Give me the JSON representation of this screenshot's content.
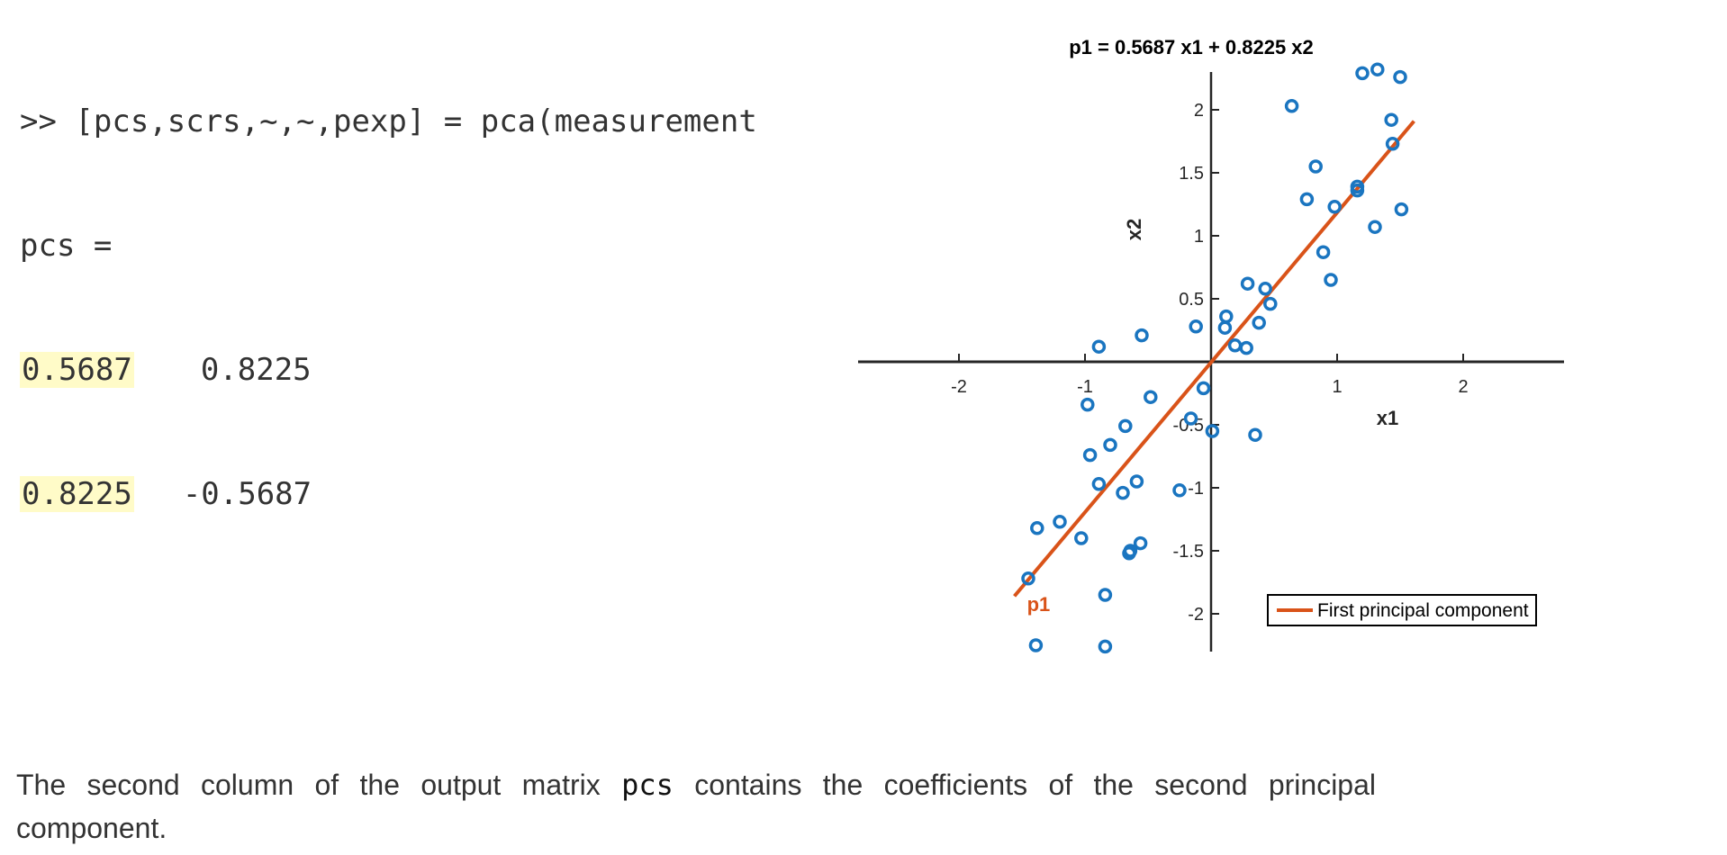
{
  "code": {
    "command": ">> [pcs,scrs,~,~,pexp] = pca(measurement",
    "var_label": "pcs =",
    "matrix": [
      [
        "0.5687",
        "0.8225"
      ],
      [
        "0.8225",
        "-0.5687"
      ]
    ]
  },
  "chart_data": {
    "type": "scatter",
    "title": "p1 = 0.5687 x1 + 0.8225 x2",
    "xlabel": "x1",
    "ylabel": "x2",
    "xlim": [
      -2.8,
      2.8
    ],
    "ylim": [
      -2.3,
      2.3
    ],
    "x_ticks": [
      -2,
      -1,
      1,
      2
    ],
    "y_ticks": [
      -2,
      -1.5,
      -1,
      -0.5,
      0.5,
      1,
      1.5,
      2
    ],
    "tick_labels_x": [
      "-2",
      "-1",
      "1",
      "2"
    ],
    "tick_labels_y": [
      "-2",
      "-1.5",
      "-1",
      "-0.5",
      "0.5",
      "1",
      "1.5",
      "2"
    ],
    "grid": false,
    "legend_position": "bottom-right",
    "colors": {
      "points": "#1a75c0",
      "line": "#d95319",
      "axes": "#262626"
    },
    "points": [
      [
        1.2,
        2.29
      ],
      [
        1.32,
        2.32
      ],
      [
        1.5,
        2.26
      ],
      [
        0.64,
        2.03
      ],
      [
        1.43,
        1.92
      ],
      [
        1.44,
        1.73
      ],
      [
        0.83,
        1.55
      ],
      [
        1.16,
        1.39
      ],
      [
        1.16,
        1.36
      ],
      [
        0.76,
        1.29
      ],
      [
        0.98,
        1.23
      ],
      [
        1.51,
        1.21
      ],
      [
        1.3,
        1.07
      ],
      [
        0.89,
        0.87
      ],
      [
        0.95,
        0.65
      ],
      [
        0.29,
        0.62
      ],
      [
        0.43,
        0.58
      ],
      [
        0.47,
        0.46
      ],
      [
        0.12,
        0.36
      ],
      [
        0.38,
        0.31
      ],
      [
        -0.12,
        0.28
      ],
      [
        0.11,
        0.27
      ],
      [
        -0.55,
        0.21
      ],
      [
        -0.89,
        0.12
      ],
      [
        0.19,
        0.13
      ],
      [
        0.28,
        0.11
      ],
      [
        -0.06,
        -0.21
      ],
      [
        -0.48,
        -0.28
      ],
      [
        -0.98,
        -0.34
      ],
      [
        -0.68,
        -0.51
      ],
      [
        -0.16,
        -0.45
      ],
      [
        0.01,
        -0.55
      ],
      [
        0.35,
        -0.58
      ],
      [
        -0.8,
        -0.66
      ],
      [
        -0.96,
        -0.74
      ],
      [
        -0.89,
        -0.97
      ],
      [
        -0.59,
        -0.95
      ],
      [
        -0.7,
        -1.04
      ],
      [
        -0.25,
        -1.02
      ],
      [
        -1.2,
        -1.27
      ],
      [
        -1.38,
        -1.32
      ],
      [
        -1.03,
        -1.4
      ],
      [
        -0.56,
        -1.44
      ],
      [
        -0.64,
        -1.5
      ],
      [
        -0.65,
        -1.52
      ],
      [
        -1.45,
        -1.72
      ],
      [
        -0.84,
        -1.85
      ],
      [
        -1.39,
        -2.25
      ],
      [
        -0.84,
        -2.26
      ]
    ],
    "line": {
      "name": "First principal component",
      "start": [
        -1.56,
        -1.86
      ],
      "end": [
        1.61,
        1.91
      ],
      "label": "p1"
    }
  },
  "prose": {
    "before": "The second column of the output matrix ",
    "code": "pcs",
    "after": " contains the coefficients of the second principal component."
  }
}
